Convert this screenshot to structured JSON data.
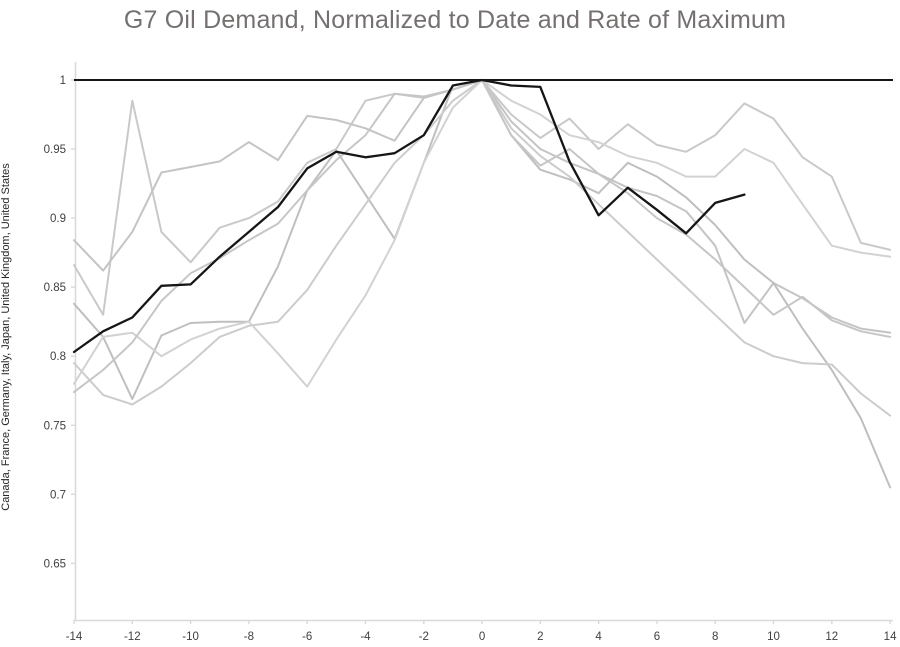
{
  "title": "G7 Oil Demand, Normalized to Date and Rate of Maximum",
  "y_axis_label": "Canada, France, Germany, Italy, Japan, United Kingdom, United States",
  "chart_data": {
    "type": "line",
    "title": "G7 Oil Demand, Normalized to Date and Rate of Maximum",
    "xlabel": "",
    "ylabel": "Canada, France, Germany, Italy, Japan, United Kingdom, United States",
    "x_tick_labels": [
      "-14",
      "-12",
      "-10",
      "-8",
      "-6",
      "-4",
      "-2",
      "0",
      "2",
      "4",
      "6",
      "8",
      "10",
      "12",
      "14"
    ],
    "x_tick_values": [
      -14,
      -12,
      -10,
      -8,
      -6,
      -4,
      -2,
      0,
      2,
      4,
      6,
      8,
      10,
      12,
      14
    ],
    "y_tick_labels": [
      "1",
      "0.95",
      "0.9",
      "0.85",
      "0.8",
      "0.75",
      "0.7",
      "0.65"
    ],
    "y_tick_values": [
      1,
      0.95,
      0.9,
      0.85,
      0.8,
      0.75,
      0.7,
      0.65
    ],
    "xlim": [
      -14,
      14.1
    ],
    "ylim": [
      0.609,
      1.013
    ],
    "grid": false,
    "legend_position": "none",
    "reference_line": {
      "y": 1.0,
      "color": "#161616",
      "width": 2
    },
    "axis_color": "#d9d9d9",
    "tick_label_color": "#3f3f3f",
    "series": [
      {
        "name": "gray-country-1",
        "color": "#c9c9c9",
        "width": 2,
        "x_start": -14,
        "values": [
          0.866,
          0.83,
          0.985,
          0.89,
          0.868,
          0.893,
          0.9,
          0.912,
          0.94,
          0.95,
          0.985,
          0.99,
          0.987,
          0.993,
          1.0,
          0.975,
          0.958,
          0.972,
          0.95,
          0.968,
          0.953,
          0.948,
          0.96,
          0.983,
          0.972,
          0.944,
          0.93,
          0.882,
          0.877
        ]
      },
      {
        "name": "gray-country-2",
        "color": "#c4c4c4",
        "width": 2,
        "x_start": -14,
        "values": [
          0.884,
          0.862,
          0.89,
          0.933,
          0.937,
          0.941,
          0.955,
          0.942,
          0.974,
          0.971,
          0.965,
          0.956,
          0.987,
          0.993,
          1.0,
          0.97,
          0.95,
          0.94,
          0.932,
          0.922,
          0.916,
          0.905,
          0.88,
          0.824,
          0.853,
          0.842,
          0.828,
          0.82,
          0.817
        ]
      },
      {
        "name": "gray-country-3",
        "color": "#bfbfbf",
        "width": 2,
        "x_start": -14,
        "values": [
          0.838,
          0.814,
          0.769,
          0.815,
          0.824,
          0.825,
          0.825,
          0.865,
          0.92,
          0.949,
          0.917,
          0.885,
          0.94,
          0.996,
          1.0,
          0.96,
          0.935,
          0.928,
          0.918,
          0.94,
          0.93,
          0.915,
          0.895,
          0.87,
          0.853,
          0.82,
          0.79,
          0.755,
          0.705
        ]
      },
      {
        "name": "gray-country-4",
        "color": "#cccccc",
        "width": 2,
        "x_start": -14,
        "values": [
          0.795,
          0.772,
          0.765,
          0.778,
          0.795,
          0.814,
          0.822,
          0.825,
          0.848,
          0.88,
          0.91,
          0.94,
          0.96,
          0.985,
          1.0,
          0.965,
          0.945,
          0.93,
          0.91,
          0.89,
          0.87,
          0.85,
          0.83,
          0.81,
          0.8,
          0.795,
          0.794,
          0.773,
          0.757
        ]
      },
      {
        "name": "gray-country-5",
        "color": "#d2d2d2",
        "width": 2,
        "x_start": -14,
        "values": [
          0.78,
          0.814,
          0.817,
          0.8,
          0.812,
          0.82,
          0.825,
          0.802,
          0.778,
          0.812,
          0.844,
          0.884,
          0.94,
          0.98,
          1.0,
          0.985,
          0.975,
          0.96,
          0.955,
          0.945,
          0.94,
          0.93,
          0.93,
          0.95,
          0.94,
          0.91,
          0.88,
          0.875,
          0.872
        ]
      },
      {
        "name": "gray-country-6",
        "color": "#c6c6c6",
        "width": 2,
        "x_start": -14,
        "values": [
          0.774,
          0.79,
          0.81,
          0.84,
          0.86,
          0.871,
          0.884,
          0.896,
          0.92,
          0.942,
          0.96,
          0.99,
          0.988,
          0.993,
          1.0,
          0.96,
          0.938,
          0.95,
          0.932,
          0.918,
          0.9,
          0.888,
          0.87,
          0.85,
          0.83,
          0.843,
          0.826,
          0.818,
          0.814
        ]
      },
      {
        "name": "highlighted-country",
        "color": "#161616",
        "width": 2.3,
        "x_start": -14,
        "values": [
          0.803,
          0.818,
          0.828,
          0.851,
          0.852,
          0.872,
          0.89,
          0.908,
          0.936,
          0.948,
          0.944,
          0.947,
          0.96,
          0.996,
          1.0,
          0.996,
          0.995,
          0.941,
          0.902,
          0.922,
          0.906,
          0.889,
          0.911,
          0.917
        ]
      }
    ]
  }
}
